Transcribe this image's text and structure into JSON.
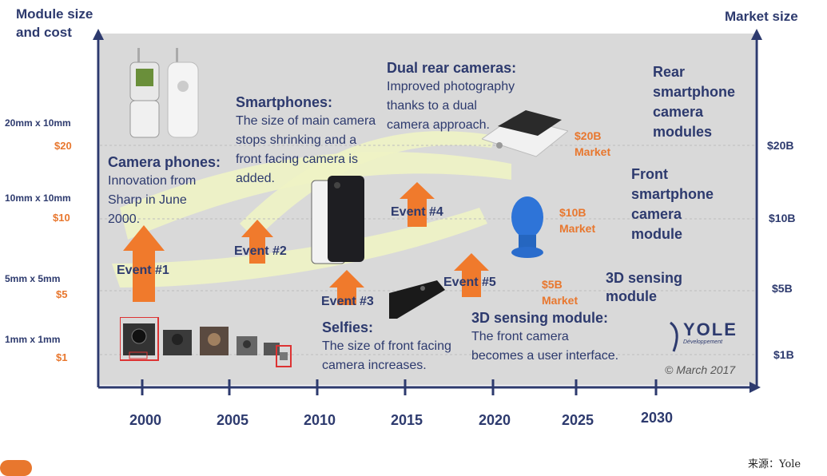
{
  "axes": {
    "left_title_line1": "Module size",
    "left_title_line2": "and cost",
    "right_title": "Market size",
    "size_ticks": [
      "20mm x 10mm",
      "10mm x 10mm",
      "5mm x 5mm",
      "1mm x 1mm"
    ],
    "cost_ticks": [
      "$20",
      "$10",
      "$5",
      "$1"
    ],
    "market_ticks": [
      "$20B",
      "$10B",
      "$5B",
      "$1B"
    ],
    "years": [
      "2000",
      "2005",
      "2010",
      "2015",
      "2020",
      "2025",
      "2030"
    ]
  },
  "eras": {
    "camera_phones": {
      "title": "Camera phones:",
      "lines": [
        "Innovation from",
        "Sharp in June",
        "2000."
      ]
    },
    "smartphones": {
      "title": "Smartphones:",
      "lines": [
        "The size of main camera",
        "stops shrinking and a",
        "front facing camera is",
        "added."
      ]
    },
    "dual": {
      "title": "Dual rear cameras:",
      "lines": [
        "Improved photography",
        "thanks to a dual",
        "camera approach."
      ]
    },
    "selfies": {
      "title": "Selfies:",
      "lines": [
        "The size of front facing",
        "camera increases."
      ]
    },
    "sensing3d": {
      "title": "3D sensing module:",
      "lines": [
        "The front camera",
        "becomes a user interface."
      ]
    }
  },
  "events": [
    "Event #1",
    "Event #2",
    "Event #3",
    "Event #4",
    "Event #5"
  ],
  "markets": {
    "m20": {
      "value": "$20B",
      "label": "Market"
    },
    "m10": {
      "value": "$10B",
      "label": "Market"
    },
    "m5": {
      "value": "$5B",
      "label": "Market"
    }
  },
  "segments": {
    "rear": [
      "Rear",
      "smartphone",
      "camera",
      "modules"
    ],
    "front": [
      "Front",
      "smartphone",
      "camera",
      "module"
    ],
    "sensing": [
      "3D sensing",
      "module"
    ]
  },
  "branding": {
    "logo": "YOLE",
    "logo_sub": "Développement",
    "copyright": "© March 2017",
    "source": "来源：Yole"
  },
  "colors": {
    "navy": "#2d3a6e",
    "orange": "#e8772e",
    "plot_bg": "#d9d9d9",
    "swoosh": "#e6f0b0"
  }
}
